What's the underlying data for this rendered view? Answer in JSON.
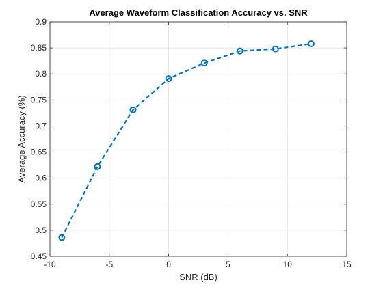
{
  "chart_data": {
    "type": "line",
    "title": "Average Waveform Classification Accuracy vs. SNR",
    "xlabel": "SNR (dB)",
    "ylabel": "Average Accuracy (%)",
    "xlim": [
      -10,
      15
    ],
    "ylim": [
      0.45,
      0.9
    ],
    "xticks": [
      -10,
      -5,
      0,
      5,
      10,
      15
    ],
    "xtick_labels": [
      "-10",
      "-5",
      "0",
      "5",
      "10",
      "15"
    ],
    "yticks": [
      0.45,
      0.5,
      0.55,
      0.6,
      0.65,
      0.7,
      0.75,
      0.8,
      0.85,
      0.9
    ],
    "ytick_labels": [
      "0.45",
      "0.5",
      "0.55",
      "0.6",
      "0.65",
      "0.7",
      "0.75",
      "0.8",
      "0.85",
      "0.9"
    ],
    "grid": true,
    "legend": "none",
    "series": [
      {
        "x": [
          -9,
          -6,
          -3,
          0,
          3,
          6,
          9,
          12
        ],
        "y": [
          0.486,
          0.622,
          0.731,
          0.791,
          0.821,
          0.844,
          0.848,
          0.858
        ],
        "color": "#0072BD",
        "line_style": "dashed",
        "marker": "circle"
      }
    ]
  }
}
